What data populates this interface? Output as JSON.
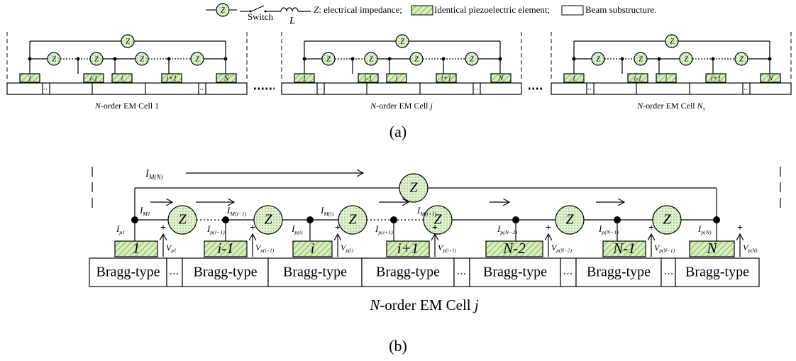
{
  "legend": {
    "impedance_symbol": "Z",
    "switch": "Switch",
    "inductor": "L",
    "impedance_text": {
      "symbol": "Z",
      "text": ": electrical impedance;"
    },
    "piezo_text": "Identical piezoelectric element;",
    "beam_text": "Beam substructure."
  },
  "panel_a": {
    "impedance": "Z",
    "elements": [
      "1",
      "i-1",
      "i",
      "i+1",
      "N"
    ],
    "cells": [
      {
        "label": [
          {
            "text": "N",
            "italic": true
          },
          {
            "text": "-order EM Cell 1"
          }
        ]
      },
      {
        "label": [
          {
            "text": "N",
            "italic": true
          },
          {
            "text": "-order EM Cell "
          },
          {
            "text": "j",
            "italic": true
          }
        ]
      },
      {
        "label": [
          {
            "text": "N",
            "italic": true
          },
          {
            "text": "-order EM Cell "
          },
          {
            "text": "N",
            "italic": true
          },
          {
            "text": "s",
            "italic": true,
            "sub": true
          }
        ]
      }
    ],
    "caption": "(a)"
  },
  "panel_b": {
    "impedance": "Z",
    "top_current": {
      "main": "I",
      "sub": "M(N)"
    },
    "branch_currents": [
      {
        "main": "I",
        "sub": "M1"
      },
      {
        "main": "I",
        "sub": "M(i−1)"
      },
      {
        "main": "I",
        "sub": "M(i)"
      },
      {
        "main": "I",
        "sub": "M(i+1)"
      }
    ],
    "element_currents": [
      {
        "main": "I",
        "sub": "p1"
      },
      {
        "main": "I",
        "sub": "p(i−1)"
      },
      {
        "main": "I",
        "sub": "p(i)"
      },
      {
        "main": "I",
        "sub": "p(i+1)"
      },
      {
        "main": "I",
        "sub": "p(N−2)"
      },
      {
        "main": "I",
        "sub": "p(N−1)"
      },
      {
        "main": "I",
        "sub": "p(N)"
      }
    ],
    "voltages": [
      {
        "main": "V",
        "sub": "p1"
      },
      {
        "main": "V",
        "sub": "p(i−1)"
      },
      {
        "main": "V",
        "sub": "p(i)"
      },
      {
        "main": "V",
        "sub": "p(i+1)"
      },
      {
        "main": "V",
        "sub": "p(N−2)"
      },
      {
        "main": "V",
        "sub": "p(N−1)"
      },
      {
        "main": "V",
        "sub": "p(N)"
      }
    ],
    "plus": "+",
    "elements": [
      "1",
      "i-1",
      "i",
      "i+1",
      "N-2",
      "N-1",
      "N"
    ],
    "substructure": "Bragg-type",
    "cell_label": [
      {
        "text": "N",
        "italic": true
      },
      {
        "text": "-order EM Cell "
      },
      {
        "text": "j",
        "italic": true
      }
    ],
    "caption": "(b)"
  }
}
